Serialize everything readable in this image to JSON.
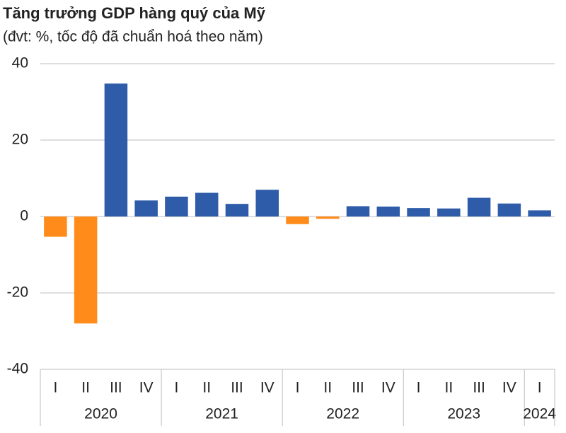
{
  "chart_data": {
    "type": "bar",
    "title": "Tăng trưởng GDP hàng quý của Mỹ",
    "subtitle": "(đvt: %, tốc độ đã chuẩn hoá theo năm)",
    "groups": [
      {
        "name": "2020",
        "categories": [
          "I",
          "II",
          "III",
          "IV"
        ]
      },
      {
        "name": "2021",
        "categories": [
          "I",
          "II",
          "III",
          "IV"
        ]
      },
      {
        "name": "2022",
        "categories": [
          "I",
          "II",
          "III",
          "IV"
        ]
      },
      {
        "name": "2023",
        "categories": [
          "I",
          "II",
          "III",
          "IV"
        ]
      },
      {
        "name": "2024",
        "categories": [
          "I"
        ]
      }
    ],
    "values": [
      -5.3,
      -28,
      34.8,
      4.2,
      5.2,
      6.2,
      3.3,
      7,
      -2,
      -0.6,
      2.7,
      2.6,
      2.2,
      2.1,
      4.9,
      3.4,
      1.6
    ],
    "color": "#2e5ca8",
    "negative_color": "#ff8c1a",
    "ylim": [
      -40,
      40
    ],
    "yticks": [
      -40,
      -20,
      0,
      20,
      40
    ],
    "grid": true
  }
}
